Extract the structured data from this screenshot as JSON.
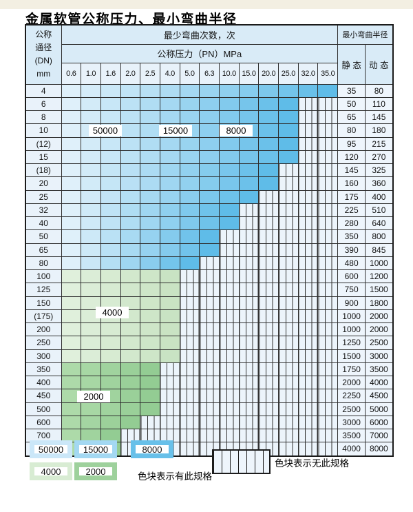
{
  "title": "金属软管公称压力、最小弯曲半径",
  "table": {
    "header": {
      "dn_lines": [
        "公称",
        "通径",
        "(DN)",
        "mm"
      ],
      "bend_cycles": "最少弯曲次数，次",
      "pressure": "公称压力（PN）MPa",
      "bend_radius": "最小弯曲半径",
      "static": "静 态",
      "dynamic": "动 态",
      "pressures": [
        "0.6",
        "1.0",
        "1.6",
        "2.0",
        "2.5",
        "4.0",
        "5.0",
        "6.3",
        "10.0",
        "15.0",
        "20.0",
        "25.0",
        "32.0",
        "35.0"
      ]
    },
    "rows": [
      {
        "dn": "4",
        "static": "35",
        "dynamic": "80",
        "colored": 14,
        "zone": "blue"
      },
      {
        "dn": "6",
        "static": "50",
        "dynamic": "110",
        "colored": 12,
        "zone": "blue"
      },
      {
        "dn": "8",
        "static": "65",
        "dynamic": "145",
        "colored": 12,
        "zone": "blue"
      },
      {
        "dn": "10",
        "static": "80",
        "dynamic": "180",
        "colored": 12,
        "zone": "blue"
      },
      {
        "dn": "(12)",
        "static": "95",
        "dynamic": "215",
        "colored": 12,
        "zone": "blue"
      },
      {
        "dn": "15",
        "static": "120",
        "dynamic": "270",
        "colored": 12,
        "zone": "blue"
      },
      {
        "dn": "(18)",
        "static": "145",
        "dynamic": "325",
        "colored": 11,
        "zone": "blue"
      },
      {
        "dn": "20",
        "static": "160",
        "dynamic": "360",
        "colored": 11,
        "zone": "blue"
      },
      {
        "dn": "25",
        "static": "175",
        "dynamic": "400",
        "colored": 10,
        "zone": "blue"
      },
      {
        "dn": "32",
        "static": "225",
        "dynamic": "510",
        "colored": 9,
        "zone": "blue"
      },
      {
        "dn": "40",
        "static": "280",
        "dynamic": "640",
        "colored": 9,
        "zone": "blue"
      },
      {
        "dn": "50",
        "static": "350",
        "dynamic": "800",
        "colored": 8,
        "zone": "blue"
      },
      {
        "dn": "65",
        "static": "390",
        "dynamic": "845",
        "colored": 8,
        "zone": "blue"
      },
      {
        "dn": "80",
        "static": "480",
        "dynamic": "1000",
        "colored": 7,
        "zone": "blue"
      },
      {
        "dn": "100",
        "static": "600",
        "dynamic": "1200",
        "colored": 6,
        "zone": "green-light"
      },
      {
        "dn": "125",
        "static": "750",
        "dynamic": "1500",
        "colored": 6,
        "zone": "green-light"
      },
      {
        "dn": "150",
        "static": "900",
        "dynamic": "1800",
        "colored": 6,
        "zone": "green-light"
      },
      {
        "dn": "(175)",
        "static": "1000",
        "dynamic": "2000",
        "colored": 6,
        "zone": "green-light"
      },
      {
        "dn": "200",
        "static": "1000",
        "dynamic": "2000",
        "colored": 6,
        "zone": "green-light"
      },
      {
        "dn": "250",
        "static": "1250",
        "dynamic": "2500",
        "colored": 6,
        "zone": "green-light"
      },
      {
        "dn": "300",
        "static": "1500",
        "dynamic": "3000",
        "colored": 6,
        "zone": "green-light"
      },
      {
        "dn": "350",
        "static": "1750",
        "dynamic": "3500",
        "colored": 5,
        "zone": "green-dark"
      },
      {
        "dn": "400",
        "static": "2000",
        "dynamic": "4000",
        "colored": 5,
        "zone": "green-dark"
      },
      {
        "dn": "450",
        "static": "2250",
        "dynamic": "4500",
        "colored": 5,
        "zone": "green-dark"
      },
      {
        "dn": "500",
        "static": "2500",
        "dynamic": "5000",
        "colored": 5,
        "zone": "green-dark"
      },
      {
        "dn": "600",
        "static": "3000",
        "dynamic": "6000",
        "colored": 4,
        "zone": "green-dark"
      },
      {
        "dn": "700",
        "static": "3500",
        "dynamic": "7000",
        "colored": 3,
        "zone": "green-dark"
      },
      {
        "dn": "800",
        "static": "4000",
        "dynamic": "8000",
        "colored": 3,
        "zone": "green-dark"
      }
    ]
  },
  "overlay_labels": [
    "50000",
    "15000",
    "8000",
    "4000",
    "2000"
  ],
  "legend": {
    "swatches": [
      {
        "label": "50000",
        "color": "#cbe7f8"
      },
      {
        "label": "15000",
        "color": "#a3d8f2"
      },
      {
        "label": "8000",
        "color": "#68c0e9"
      },
      {
        "label": "4000",
        "color": "#d8ecd3"
      },
      {
        "label": "2000",
        "color": "#9ed19c"
      }
    ],
    "has_spec_text": "色块表示有此规格",
    "no_spec_text": "色块表示无此规格"
  },
  "colors": {
    "blue_from": "#dff0fa",
    "blue_to": "#5fbce8",
    "green_light_from": "#e0f0dc",
    "green_light_to": "#c9e3c3",
    "green_dark_from": "#addaa9",
    "green_dark_to": "#93cc93",
    "header_bg": "#d9ebf7",
    "grid": "#2e2e2e"
  }
}
